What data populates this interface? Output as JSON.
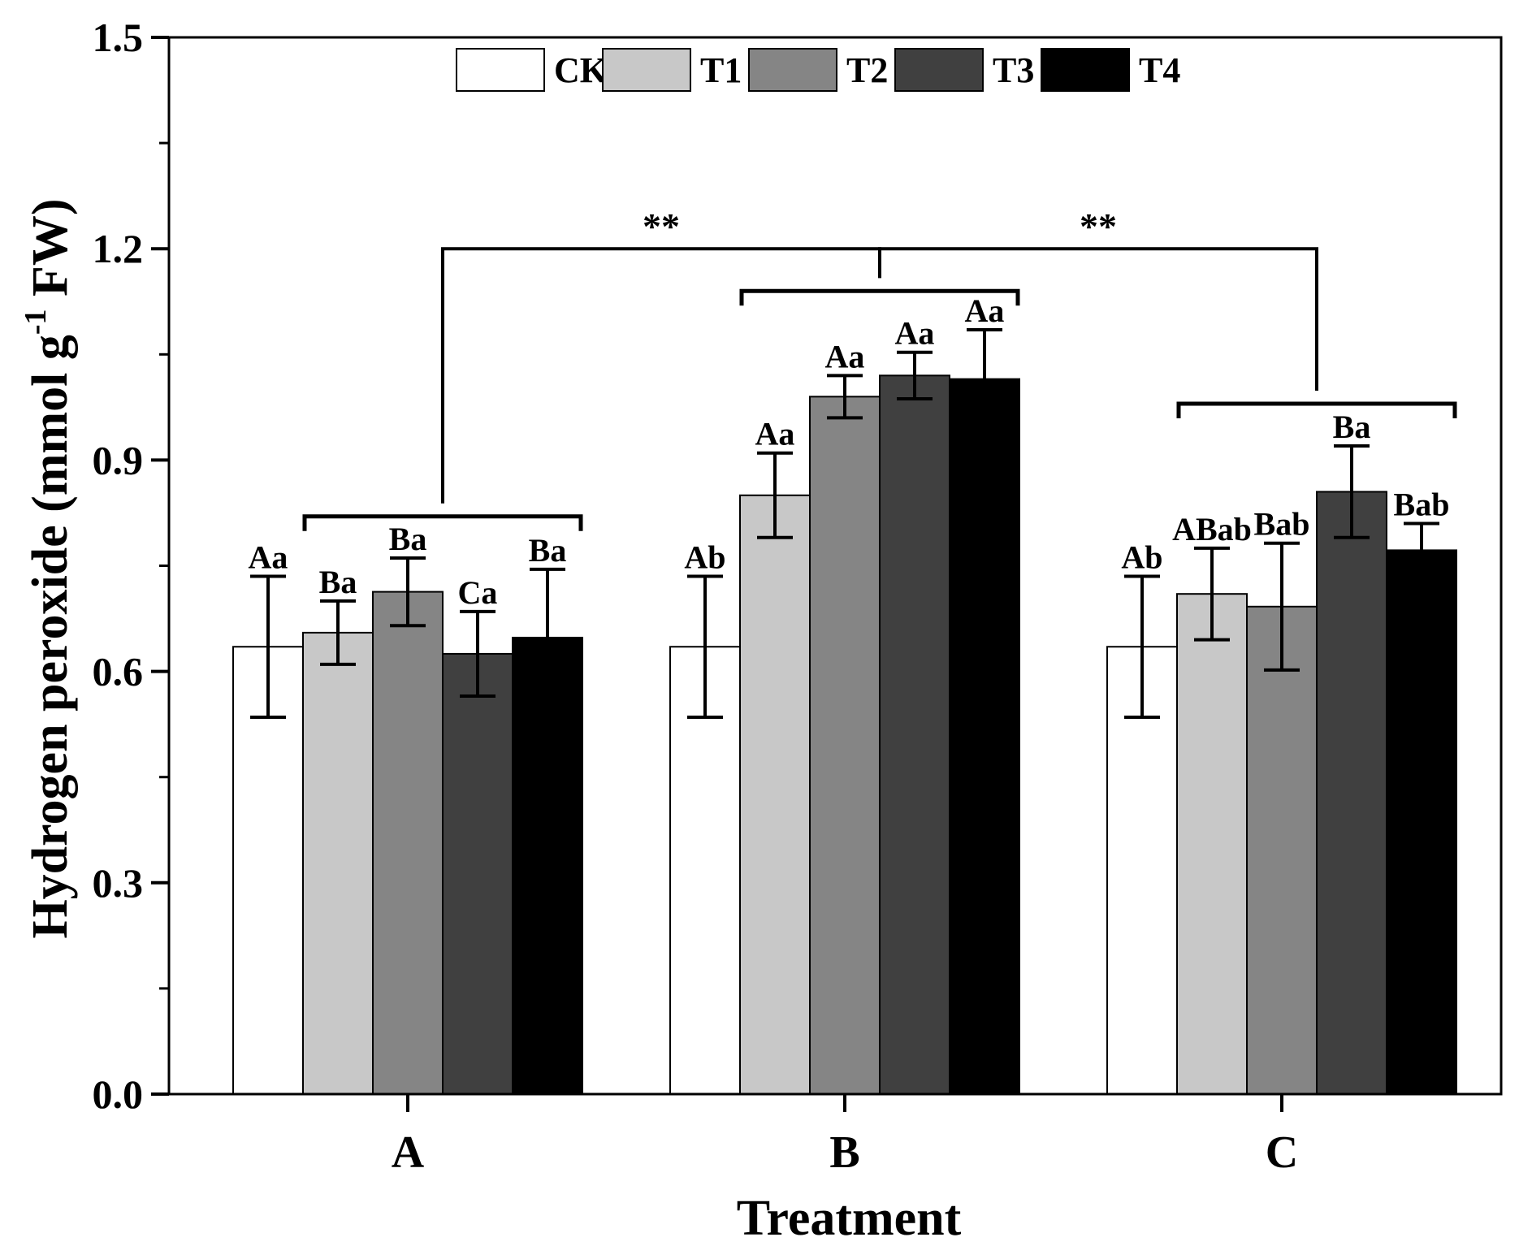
{
  "chart_data": {
    "type": "bar",
    "title": "",
    "xlabel": "Treatment",
    "ylabel_main": "Hydrogen peroxide (mmol g",
    "ylabel_sup": "-1",
    "ylabel_tail": " FW)",
    "ylim": [
      0,
      1.5
    ],
    "yticks": [
      "0.0",
      "0.3",
      "0.6",
      "0.9",
      "1.2",
      "1.5"
    ],
    "categories": [
      "A",
      "B",
      "C"
    ],
    "legend_position": "top",
    "series": [
      {
        "name": "CK",
        "color": "#ffffff",
        "values": [
          0.635,
          0.635,
          0.635
        ],
        "errors": [
          0.1,
          0.1,
          0.1
        ],
        "labels": [
          "Aa",
          "Ab",
          "Ab"
        ]
      },
      {
        "name": "T1",
        "color": "#c8c8c8",
        "values": [
          0.655,
          0.85,
          0.71
        ],
        "errors": [
          0.045,
          0.06,
          0.065
        ],
        "labels": [
          "Ba",
          "Aa",
          "ABab"
        ]
      },
      {
        "name": "T2",
        "color": "#858585",
        "values": [
          0.713,
          0.99,
          0.692
        ],
        "errors": [
          0.048,
          0.03,
          0.09
        ],
        "labels": [
          "Ba",
          "Aa",
          "Bab"
        ]
      },
      {
        "name": "T3",
        "color": "#404040",
        "values": [
          0.625,
          1.02,
          0.855
        ],
        "errors": [
          0.06,
          0.033,
          0.065
        ],
        "labels": [
          "Ca",
          "Aa",
          "Ba"
        ]
      },
      {
        "name": "T4",
        "color": "#000000",
        "values": [
          0.648,
          1.015,
          0.772
        ],
        "errors": [
          0.097,
          0.07,
          0.038
        ],
        "labels": [
          "Ba",
          "Aa",
          "Bab"
        ]
      }
    ],
    "group_brackets": [
      {
        "category": "A",
        "y": 0.82
      },
      {
        "category": "B",
        "y": 1.14
      },
      {
        "category": "C",
        "y": 0.98
      }
    ],
    "comparisons": [
      {
        "from": "A",
        "to": "B",
        "label": "**",
        "y": 1.2
      },
      {
        "from": "B",
        "to": "C",
        "label": "**",
        "y": 1.2
      }
    ]
  }
}
